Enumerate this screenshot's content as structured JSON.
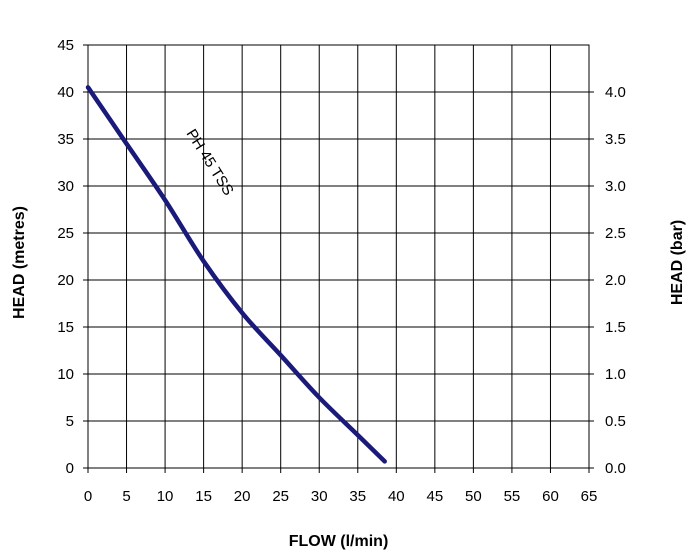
{
  "chart_data": {
    "type": "line",
    "title": "",
    "xlabel": "FLOW (l/min)",
    "ylabel": "HEAD (metres)",
    "y2label": "HEAD (bar)",
    "xlim": [
      0,
      65
    ],
    "ylim": [
      0,
      45
    ],
    "y2lim": [
      0,
      4.5
    ],
    "x_ticks": [
      "0",
      "5",
      "10",
      "15",
      "20",
      "25",
      "30",
      "35",
      "40",
      "45",
      "50",
      "55",
      "60",
      "65"
    ],
    "y_ticks": [
      "0",
      "5",
      "10",
      "15",
      "20",
      "25",
      "30",
      "35",
      "40",
      "45"
    ],
    "y2_ticks": [
      "0.0",
      "0.5",
      "1.0",
      "1.5",
      "2.0",
      "2.5",
      "3.0",
      "3.5",
      "4.0"
    ],
    "grid": true,
    "line_color": "#1a1a7a",
    "series": [
      {
        "name": "PH 45 TSS",
        "x": [
          0,
          5,
          10,
          15,
          20,
          25,
          30,
          35,
          38.5
        ],
        "y": [
          40.5,
          34.5,
          28.5,
          22,
          16.5,
          12,
          7.5,
          3.5,
          0.7
        ]
      }
    ]
  }
}
